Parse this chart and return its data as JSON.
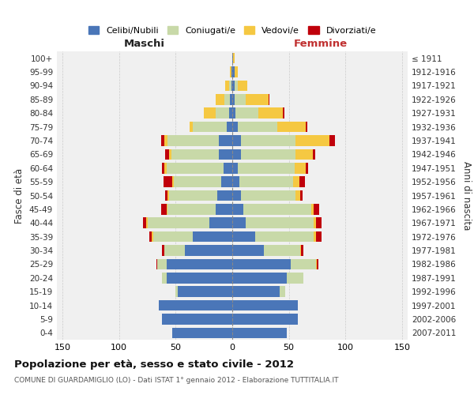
{
  "age_groups": [
    "0-4",
    "5-9",
    "10-14",
    "15-19",
    "20-24",
    "25-29",
    "30-34",
    "35-39",
    "40-44",
    "45-49",
    "50-54",
    "55-59",
    "60-64",
    "65-69",
    "70-74",
    "75-79",
    "80-84",
    "85-89",
    "90-94",
    "95-99",
    "100+"
  ],
  "birth_years": [
    "2007-2011",
    "2002-2006",
    "1997-2001",
    "1992-1996",
    "1987-1991",
    "1982-1986",
    "1977-1981",
    "1972-1976",
    "1967-1971",
    "1962-1966",
    "1957-1961",
    "1952-1956",
    "1947-1951",
    "1942-1946",
    "1937-1941",
    "1932-1936",
    "1927-1931",
    "1922-1926",
    "1917-1921",
    "1912-1916",
    "≤ 1911"
  ],
  "colors": {
    "celibi": "#4a76b8",
    "coniugati": "#c8d9a8",
    "vedovi": "#f5c842",
    "divorziati": "#c0000b"
  },
  "maschi": {
    "celibi": [
      53,
      62,
      65,
      48,
      58,
      58,
      42,
      35,
      20,
      15,
      13,
      10,
      8,
      12,
      12,
      5,
      3,
      2,
      1,
      1,
      0
    ],
    "coniugati": [
      0,
      0,
      0,
      2,
      4,
      8,
      18,
      35,
      55,
      42,
      43,
      42,
      50,
      42,
      45,
      30,
      12,
      5,
      2,
      0,
      0
    ],
    "vedovi": [
      0,
      0,
      0,
      0,
      0,
      0,
      0,
      1,
      1,
      1,
      1,
      1,
      2,
      2,
      3,
      3,
      10,
      8,
      3,
      1,
      0
    ],
    "divorziati": [
      0,
      0,
      0,
      0,
      0,
      1,
      2,
      2,
      3,
      5,
      2,
      8,
      2,
      3,
      3,
      0,
      0,
      0,
      0,
      0,
      0
    ]
  },
  "femmine": {
    "celibi": [
      48,
      58,
      58,
      42,
      48,
      52,
      28,
      20,
      12,
      10,
      8,
      6,
      5,
      8,
      8,
      5,
      3,
      2,
      2,
      2,
      1
    ],
    "coniugati": [
      0,
      0,
      0,
      5,
      15,
      22,
      32,
      52,
      60,
      60,
      48,
      48,
      50,
      48,
      48,
      35,
      20,
      10,
      3,
      0,
      0
    ],
    "vedovi": [
      0,
      0,
      0,
      0,
      0,
      1,
      1,
      2,
      2,
      2,
      4,
      5,
      10,
      15,
      30,
      25,
      22,
      20,
      8,
      3,
      1
    ],
    "divorziati": [
      0,
      0,
      0,
      0,
      0,
      1,
      2,
      5,
      5,
      5,
      2,
      5,
      2,
      2,
      5,
      1,
      1,
      1,
      0,
      0,
      0
    ]
  },
  "xlim": 155,
  "title": "Popolazione per età, sesso e stato civile - 2012",
  "subtitle": "COMUNE DI GUARDAMIGLIO (LO) - Dati ISTAT 1° gennaio 2012 - Elaborazione TUTTITALIA.IT",
  "xlabel_left": "Maschi",
  "xlabel_right": "Femmine",
  "ylabel_left": "Fasce di età",
  "ylabel_right": "Anni di nascita",
  "legend_labels": [
    "Celibi/Nubili",
    "Coniugati/e",
    "Vedovi/e",
    "Divorziati/e"
  ],
  "bg_color": "#ffffff",
  "plot_bg": "#f0f0f0",
  "grid_color": "#cccccc"
}
